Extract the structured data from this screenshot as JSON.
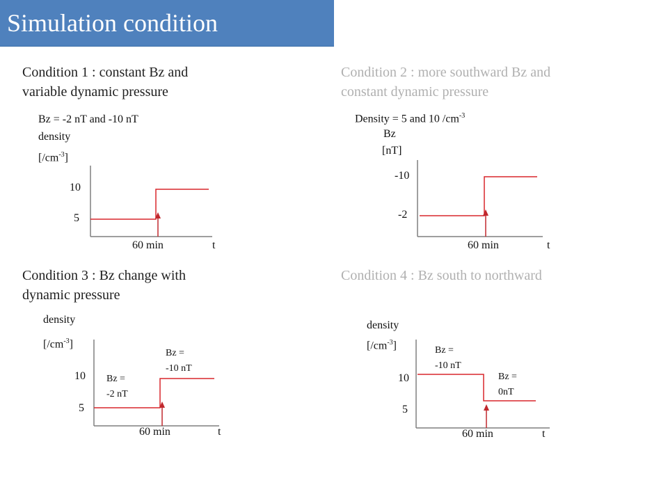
{
  "slide": {
    "title": "Simulation condition",
    "title_bar_color": "#4f81bd"
  },
  "condition1": {
    "heading": "Condition 1 :  constant Bz and\nvariable dynamic pressure",
    "param": "Bz = -2 nT  and  -10 nT",
    "ylabel": "density",
    "yunit_prefix": "[/cm",
    "yunit_exp": "-3",
    "yunit_suffix": "]",
    "ytick_high": "10",
    "ytick_low": "5",
    "xtick": "60 min",
    "xaxis": "t"
  },
  "condition2": {
    "heading": "Condition 2 : more southward Bz and\nconstant dynamic pressure",
    "param_prefix": "Density  = 5 and 10 /cm",
    "param_exp": "-3",
    "ylabel": "Bz",
    "yunit": "[nT]",
    "ytick_high": "-10",
    "ytick_low": "-2",
    "xtick": "60 min",
    "xaxis": "t"
  },
  "condition3": {
    "heading": "Condition 3 : Bz change with\ndynamic pressure",
    "ylabel": "density",
    "yunit_prefix": "[/cm",
    "yunit_exp": "-3",
    "yunit_suffix": "]",
    "ytick_high": "10",
    "ytick_low": "5",
    "xtick": "60 min",
    "xaxis": "t",
    "annot_left_1": "Bz =",
    "annot_left_2": "-2 nT",
    "annot_right_1": "Bz =",
    "annot_right_2": "-10 nT"
  },
  "condition4": {
    "heading": "Condition 4 : Bz south to northward",
    "ylabel": "density",
    "yunit_prefix": "[/cm",
    "yunit_exp": "-3",
    "yunit_suffix": "]",
    "ytick_high": "10",
    "ytick_low": "5",
    "xtick": "60 min",
    "xaxis": "t",
    "annot_left_1": "Bz =",
    "annot_left_2": "-10 nT",
    "annot_right_1": "Bz =",
    "annot_right_2": "0nT"
  },
  "colors": {
    "step_line": "#d9262b",
    "axis": "#7f7f7f",
    "marker": "#c0282d"
  }
}
